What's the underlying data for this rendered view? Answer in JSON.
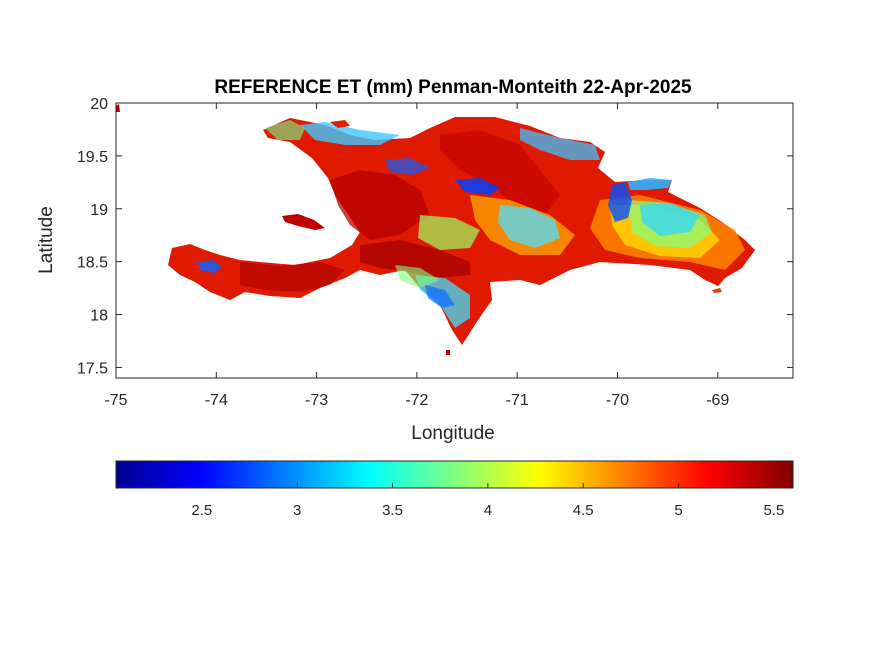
{
  "map": {
    "title": "REFERENCE ET (mm) Penman-Monteith 22-Apr-2025",
    "xlabel": "Longitude",
    "ylabel": "Latitude",
    "xlim": [
      -75,
      -68.25
    ],
    "ylim": [
      17.4,
      20
    ],
    "x_ticks": [
      "-75",
      "-74",
      "-73",
      "-72",
      "-71",
      "-70",
      "-69"
    ],
    "x_tick_values": [
      -75,
      -74,
      -73,
      -72,
      -71,
      -70,
      -69
    ],
    "y_ticks": [
      "20",
      "19.5",
      "19",
      "18.5",
      "18",
      "17.5"
    ],
    "y_tick_values": [
      20,
      19.5,
      19,
      18.5,
      18,
      17.5
    ],
    "region": "Hispaniola (Haiti and Dominican Republic)",
    "colormap": "jet",
    "colors": {
      "mask_fill": "#ffffff",
      "axes": "#262626",
      "island_base": "#e01a00"
    }
  },
  "colorbar": {
    "range": [
      2.05,
      5.6
    ],
    "ticks": [
      "2.5",
      "3",
      "3.5",
      "4",
      "4.5",
      "5",
      "5.5"
    ],
    "tick_values": [
      2.5,
      3,
      3.5,
      4,
      4.5,
      5,
      5.5
    ]
  }
}
